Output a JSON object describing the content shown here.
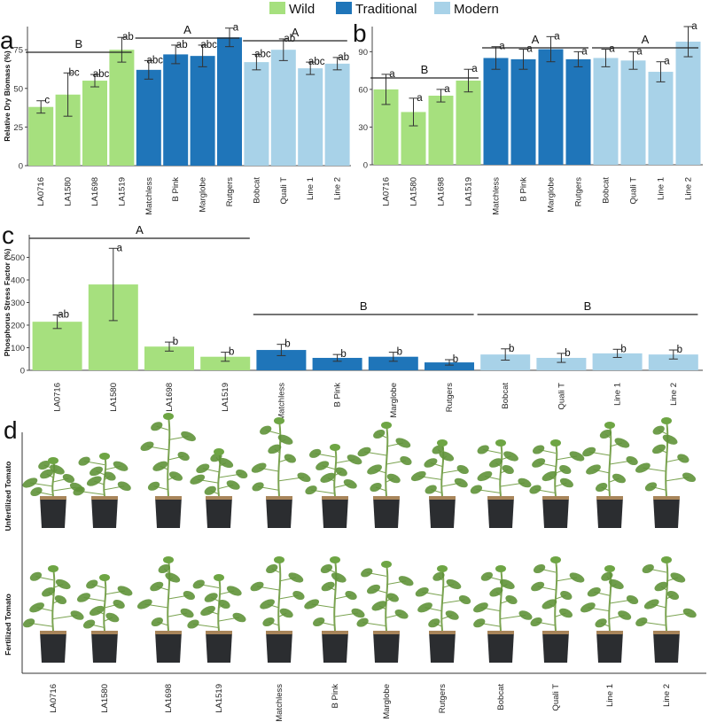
{
  "legend": [
    {
      "label": "Wild",
      "color": "#a6e07e"
    },
    {
      "label": "Traditional",
      "color": "#1f75b9"
    },
    {
      "label": "Modern",
      "color": "#a8d2e8"
    }
  ],
  "colors": {
    "Wild": "#a6e07e",
    "Traditional": "#1f75b9",
    "Modern": "#a8d2e8"
  },
  "cultivars": [
    "LA0716",
    "LA1580",
    "LA1698",
    "LA1519",
    "Matchless",
    "B Pink",
    "Marglobe",
    "Rutgers",
    "Bobcat",
    "Quali T",
    "Line 1",
    "Line 2"
  ],
  "groups": [
    "Wild",
    "Wild",
    "Wild",
    "Wild",
    "Traditional",
    "Traditional",
    "Traditional",
    "Traditional",
    "Modern",
    "Modern",
    "Modern",
    "Modern"
  ],
  "chart_data": [
    {
      "panel": "a",
      "type": "bar",
      "ylabel": "Relative Dry Biomass (%)",
      "ylim": [
        0,
        90
      ],
      "yticks": [
        0,
        25,
        50,
        75
      ],
      "values": [
        38,
        46,
        55,
        75,
        62,
        72,
        71,
        83,
        67,
        75,
        63,
        66
      ],
      "errors": [
        4,
        14,
        4,
        8,
        6,
        6,
        7,
        6,
        5,
        7,
        4,
        4
      ],
      "letters": [
        "c",
        "bc",
        "abc",
        "ab",
        "abc",
        "ab",
        "abc",
        "a",
        "abc",
        "ab",
        "abc",
        "ab"
      ],
      "group_labels": [
        {
          "text": "B",
          "from": 0,
          "to": 3
        },
        {
          "text": "A",
          "from": 4,
          "to": 7
        },
        {
          "text": "A",
          "from": 8,
          "to": 11
        }
      ]
    },
    {
      "panel": "b",
      "type": "bar",
      "ylabel": "",
      "ylim": [
        0,
        110
      ],
      "yticks": [
        0,
        30,
        60,
        90
      ],
      "values": [
        60,
        42,
        55,
        67,
        85,
        84,
        92,
        84,
        85,
        83,
        74,
        98
      ],
      "errors": [
        12,
        11,
        5,
        9,
        9,
        8,
        10,
        6,
        7,
        7,
        8,
        12
      ],
      "letters": [
        "a",
        "a",
        "a",
        "a",
        "a",
        "a",
        "a",
        "a",
        "a",
        "a",
        "a",
        "a"
      ],
      "group_labels": [
        {
          "text": "B",
          "from": 0,
          "to": 3
        },
        {
          "text": "A",
          "from": 4,
          "to": 7
        },
        {
          "text": "A",
          "from": 8,
          "to": 11
        }
      ]
    },
    {
      "panel": "c",
      "type": "bar",
      "ylabel": "Phosphorus Stress Factor (%)",
      "ylim": [
        0,
        600
      ],
      "yticks": [
        0,
        100,
        200,
        300,
        400,
        500
      ],
      "values": [
        215,
        380,
        105,
        60,
        90,
        55,
        60,
        35,
        70,
        55,
        75,
        70
      ],
      "errors": [
        30,
        160,
        20,
        20,
        25,
        15,
        20,
        12,
        25,
        20,
        18,
        20
      ],
      "letters": [
        "ab",
        "a",
        "b",
        "b",
        "b",
        "b",
        "b",
        "b",
        "b",
        "b",
        "b",
        "b"
      ],
      "group_labels": [
        {
          "text": "A",
          "from": 0,
          "to": 3
        },
        {
          "text": "B",
          "from": 4,
          "to": 7
        },
        {
          "text": "B",
          "from": 8,
          "to": 11
        }
      ]
    }
  ],
  "photo_panel": {
    "panel": "d",
    "row_labels": [
      "Unfertilized Tomato",
      "Fertilized Tomato"
    ],
    "pot_color": "#2b2d30",
    "soil_color": "#a8855a",
    "leaf_color": "#5f9238",
    "stem_color": "#7aa350"
  }
}
